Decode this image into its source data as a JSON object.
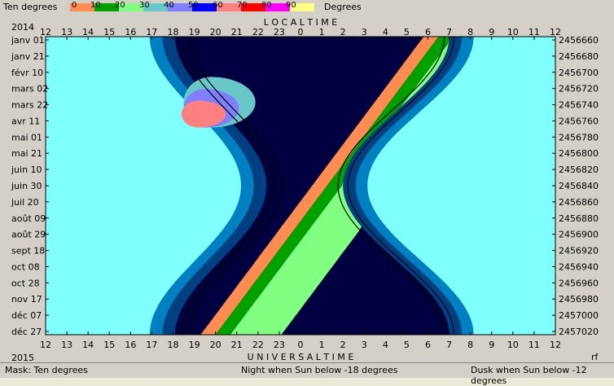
{
  "legend": {
    "title": "Ten degrees",
    "unit": "Degrees",
    "ticks": [
      "0",
      "10",
      "20",
      "30",
      "40",
      "50",
      "60",
      "70",
      "80",
      "90"
    ],
    "colors": [
      "#ff8c50",
      "#00a000",
      "#80ff80",
      "#68c8c8",
      "#8080ff",
      "#0000ff",
      "#ff8080",
      "#ff0000",
      "#ff00ff",
      "#ffff80"
    ]
  },
  "year_top": "2014",
  "year_bottom": "2015",
  "top_axis_label": "L O C A L     T I M E",
  "bottom_axis_label": "U N I V E R S A L     T I M E",
  "corner_label": "rf",
  "status": {
    "mask": "Mask:  Ten degrees",
    "night": "Night when Sun below -18 degrees",
    "dusk": "Dusk when Sun below -12 degrees"
  },
  "chart_data": {
    "type": "heatmap",
    "title": "",
    "x_top_ticks": [
      "12",
      "13",
      "14",
      "15",
      "16",
      "17",
      "18",
      "19",
      "20",
      "21",
      "22",
      "23",
      "0",
      "1",
      "2",
      "3",
      "4",
      "5",
      "6",
      "7",
      "8",
      "9",
      "10",
      "11",
      "12"
    ],
    "x_bottom_ticks": [
      "12",
      "13",
      "14",
      "15",
      "16",
      "17",
      "18",
      "19",
      "20",
      "21",
      "22",
      "23",
      "0",
      "1",
      "2",
      "3",
      "4",
      "5",
      "6",
      "7",
      "8",
      "9",
      "10",
      "11",
      "12"
    ],
    "y_left_ticks": [
      "janv 01",
      "janv 21",
      "févr 10",
      "mars 02",
      "mars 22",
      "avr 11",
      "mai 01",
      "mai 21",
      "juin 10",
      "juin 30",
      "juil 20",
      "août 09",
      "août 29",
      "sept 18",
      "oct 08",
      "oct 28",
      "nov 17",
      "déc 07",
      "déc 27"
    ],
    "y_right_ticks": [
      "2456660",
      "2456680",
      "2456700",
      "2456720",
      "2456740",
      "2456760",
      "2456780",
      "2456800",
      "2456820",
      "2456840",
      "2456860",
      "2456880",
      "2456900",
      "2456920",
      "2456940",
      "2456960",
      "2456980",
      "2457000",
      "2457020"
    ],
    "colors": {
      "day": "#80ffff",
      "night": "#000040",
      "astro": "#004080",
      "twilight": "#0080c0",
      "alt0": "#ff8c50",
      "alt10": "#00a000",
      "alt20": "#80ff80",
      "alt30": "#68c8c8",
      "alt40": "#8080ff",
      "alt50": "#ff8080"
    }
  }
}
